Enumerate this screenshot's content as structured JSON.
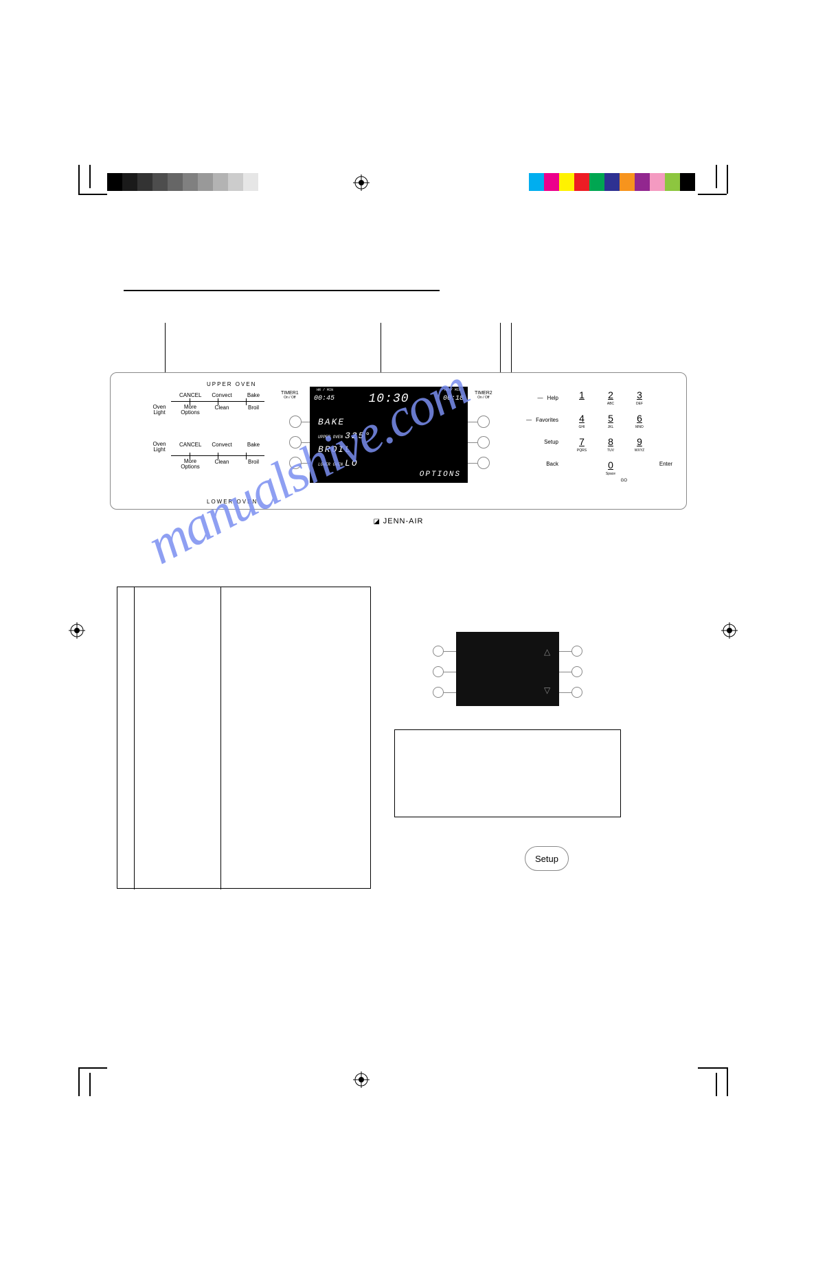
{
  "watermark": "manualshive.com",
  "crop_marks": true,
  "colorbar_left": [
    "#000000",
    "#1a1a1a",
    "#333333",
    "#4d4d4d",
    "#666666",
    "#808080",
    "#999999",
    "#b3b3b3",
    "#cccccc",
    "#e6e6e6",
    "#ffffff"
  ],
  "colorbar_right": [
    "#00aeef",
    "#ec008c",
    "#fff200",
    "#ed1c24",
    "#00a651",
    "#2e3192",
    "#f7941d",
    "#92278f",
    "#f49ac1",
    "#8dc63f",
    "#000000"
  ],
  "panel": {
    "upper_label": "UPPER OVEN",
    "lower_label": "LOWER OVEN",
    "brand": "JENN-AIR",
    "upper_buttons_row1": [
      "CANCEL",
      "Convect",
      "Bake"
    ],
    "upper_buttons_row2_left": "Oven Light",
    "upper_buttons_row2": [
      "More Options",
      "Clean",
      "Broil"
    ],
    "lower_buttons_row1_left": "Oven Light",
    "lower_buttons_row1": [
      "CANCEL",
      "Convect",
      "Bake"
    ],
    "lower_buttons_row2": [
      "More Options",
      "Clean",
      "Broil"
    ],
    "timer1_label": "TIMER1",
    "timer1_sub": "On / Off",
    "timer2_label": "TIMER2",
    "timer2_sub": "On / Off",
    "side_labels": {
      "help": "Help",
      "favorites": "Favorites",
      "setup": "Setup",
      "back": "Back",
      "enter": "Enter",
      "go": "GO"
    },
    "keypad": [
      {
        "n": "1",
        "s": ""
      },
      {
        "n": "2",
        "s": "ABC"
      },
      {
        "n": "3",
        "s": "DEF"
      },
      {
        "n": "4",
        "s": "GHI"
      },
      {
        "n": "5",
        "s": "JKL"
      },
      {
        "n": "6",
        "s": "MNO"
      },
      {
        "n": "7",
        "s": "PQRS"
      },
      {
        "n": "8",
        "s": "TUV"
      },
      {
        "n": "9",
        "s": "WXYZ"
      },
      {
        "n": "0",
        "s": "Space"
      }
    ]
  },
  "lcd": {
    "hr_min_l": "HR / MIN",
    "hr_min_r": "HR / MIN",
    "timer1": "00:45",
    "clock": "10:30",
    "timer2": "00:18",
    "line1": "BAKE",
    "line2_pre": "UPPER OVEN",
    "line2": "325°",
    "line3": "BROIL",
    "line4_pre": "LOWER OVEN",
    "line4": "LO",
    "options": "OPTIONS"
  },
  "mini": {
    "arrows": {
      "up": "△",
      "down": "▽"
    }
  },
  "setup_button": "Setup"
}
